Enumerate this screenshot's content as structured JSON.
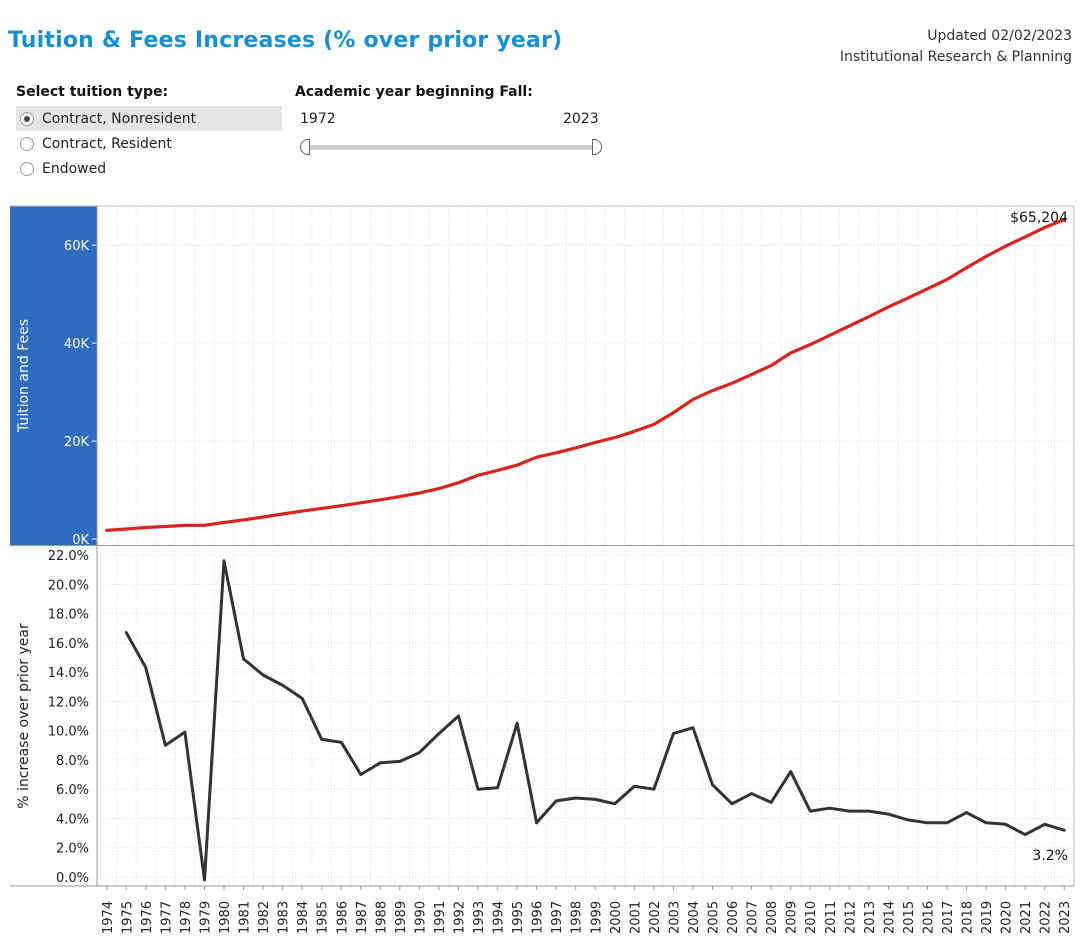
{
  "header": {
    "title": "Tuition & Fees Increases (% over prior year)",
    "updated": "Updated 02/02/2023",
    "department": "Institutional Research & Planning"
  },
  "controls": {
    "tuition_type_label": "Select tuition type:",
    "tuition_types": [
      {
        "label": "Contract, Nonresident",
        "selected": true
      },
      {
        "label": "Contract, Resident",
        "selected": false
      },
      {
        "label": "Endowed",
        "selected": false
      }
    ],
    "year_label": "Academic year beginning Fall:",
    "year_min": "1972",
    "year_max": "2023"
  },
  "colors": {
    "title": "#1a8fd0",
    "tuition_line": "#d9231d",
    "increase_line": "#333333",
    "axis_band": "#2f6cc0"
  },
  "chart_data": [
    {
      "type": "line",
      "title": "",
      "ylabel": "Tuition and Fees",
      "ylim": [
        0,
        68000
      ],
      "yticks": [
        0,
        20000,
        40000,
        60000
      ],
      "ytick_labels": [
        "0K",
        "20K",
        "40K",
        "60K"
      ],
      "x": [
        1974,
        1975,
        1976,
        1977,
        1978,
        1979,
        1980,
        1981,
        1982,
        1983,
        1984,
        1985,
        1986,
        1987,
        1988,
        1989,
        1990,
        1991,
        1992,
        1993,
        1994,
        1995,
        1996,
        1997,
        1998,
        1999,
        2000,
        2001,
        2002,
        2003,
        2004,
        2005,
        2006,
        2007,
        2008,
        2009,
        2010,
        2011,
        2012,
        2013,
        2014,
        2015,
        2016,
        2017,
        2018,
        2019,
        2020,
        2021,
        2022,
        2023
      ],
      "values": [
        1750,
        2050,
        2350,
        2550,
        2800,
        2800,
        3400,
        3900,
        4500,
        5100,
        5700,
        6250,
        6800,
        7400,
        8000,
        8650,
        9400,
        10300,
        11500,
        13000,
        14000,
        15100,
        16700,
        17600,
        18600,
        19700,
        20700,
        22000,
        23400,
        25800,
        28500,
        30300,
        31800,
        33600,
        35400,
        38000,
        39700,
        41600,
        43500,
        45400,
        47400,
        49200,
        51100,
        53000,
        55400,
        57700,
        59800,
        61700,
        63600,
        65204
      ],
      "end_label": "$65,204"
    },
    {
      "type": "line",
      "title": "",
      "ylabel": "% increase over prior year",
      "ylim": [
        0,
        22
      ],
      "yticks": [
        0,
        2,
        4,
        6,
        8,
        10,
        12,
        14,
        16,
        18,
        20,
        22
      ],
      "ytick_labels": [
        "0.0%",
        "2.0%",
        "4.0%",
        "6.0%",
        "8.0%",
        "10.0%",
        "12.0%",
        "14.0%",
        "16.0%",
        "18.0%",
        "20.0%",
        "22.0%"
      ],
      "x": [
        1975,
        1976,
        1977,
        1978,
        1979,
        1980,
        1981,
        1982,
        1983,
        1984,
        1985,
        1986,
        1987,
        1988,
        1989,
        1990,
        1991,
        1992,
        1993,
        1994,
        1995,
        1996,
        1997,
        1998,
        1999,
        2000,
        2001,
        2002,
        2003,
        2004,
        2005,
        2006,
        2007,
        2008,
        2009,
        2010,
        2011,
        2012,
        2013,
        2014,
        2015,
        2016,
        2017,
        2018,
        2019,
        2020,
        2021,
        2022,
        2023
      ],
      "values": [
        16.7,
        14.3,
        9.0,
        9.9,
        -0.2,
        21.6,
        14.9,
        13.8,
        13.1,
        12.2,
        9.4,
        9.2,
        7.0,
        7.8,
        7.9,
        8.5,
        9.8,
        11.0,
        6.0,
        6.1,
        10.5,
        3.7,
        5.2,
        5.4,
        5.3,
        5.0,
        6.2,
        6.0,
        9.8,
        10.2,
        6.3,
        5.0,
        5.7,
        5.1,
        7.2,
        4.5,
        4.7,
        4.5,
        4.5,
        4.3,
        3.9,
        3.7,
        3.7,
        4.4,
        3.7,
        3.6,
        2.9,
        3.6,
        3.2
      ],
      "end_label": "3.2%"
    }
  ],
  "x_axis": {
    "years": [
      "1974",
      "1975",
      "1976",
      "1977",
      "1978",
      "1979",
      "1980",
      "1981",
      "1982",
      "1983",
      "1984",
      "1985",
      "1986",
      "1987",
      "1988",
      "1989",
      "1990",
      "1991",
      "1992",
      "1993",
      "1994",
      "1995",
      "1996",
      "1997",
      "1998",
      "1999",
      "2000",
      "2001",
      "2002",
      "2003",
      "2004",
      "2005",
      "2006",
      "2007",
      "2008",
      "2009",
      "2010",
      "2011",
      "2012",
      "2013",
      "2014",
      "2015",
      "2016",
      "2017",
      "2018",
      "2019",
      "2020",
      "2021",
      "2022",
      "2023"
    ]
  }
}
